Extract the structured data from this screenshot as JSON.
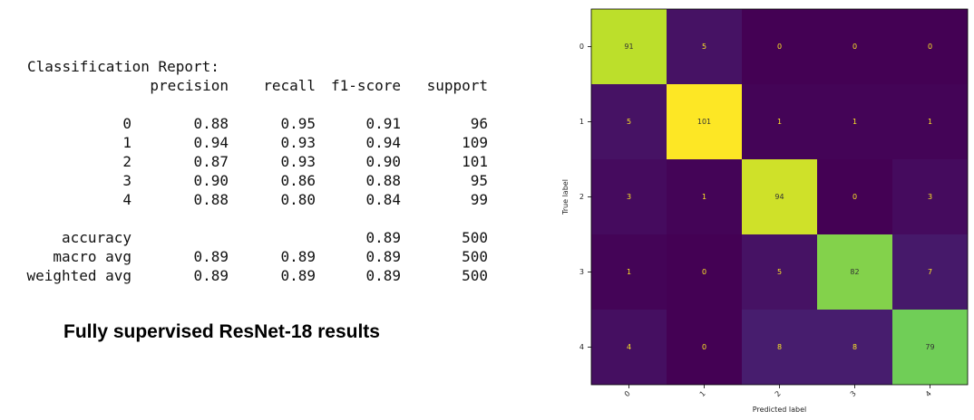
{
  "report": {
    "title": "Classification Report:",
    "headers": [
      "precision",
      "recall",
      "f1-score",
      "support"
    ],
    "rows": [
      {
        "label": "0",
        "values": [
          "0.88",
          "0.95",
          "0.91",
          "96"
        ]
      },
      {
        "label": "1",
        "values": [
          "0.94",
          "0.93",
          "0.94",
          "109"
        ]
      },
      {
        "label": "2",
        "values": [
          "0.87",
          "0.93",
          "0.90",
          "101"
        ]
      },
      {
        "label": "3",
        "values": [
          "0.90",
          "0.86",
          "0.88",
          "95"
        ]
      },
      {
        "label": "4",
        "values": [
          "0.88",
          "0.80",
          "0.84",
          "99"
        ]
      }
    ],
    "summary": [
      {
        "label": "accuracy",
        "values": [
          "",
          "",
          "0.89",
          "500"
        ]
      },
      {
        "label": "macro avg",
        "values": [
          "0.89",
          "0.89",
          "0.89",
          "500"
        ]
      },
      {
        "label": "weighted avg",
        "values": [
          "0.89",
          "0.89",
          "0.89",
          "500"
        ]
      }
    ]
  },
  "caption": "Fully supervised ResNet-18 results",
  "chart_data": {
    "type": "heatmap",
    "title": "",
    "xlabel": "Predicted label",
    "ylabel": "True label",
    "x_categories": [
      "0",
      "1",
      "2",
      "3",
      "4"
    ],
    "y_categories": [
      "0",
      "1",
      "2",
      "3",
      "4"
    ],
    "values": [
      [
        91,
        5,
        0,
        0,
        0
      ],
      [
        5,
        101,
        1,
        1,
        1
      ],
      [
        3,
        1,
        94,
        0,
        3
      ],
      [
        1,
        0,
        5,
        82,
        7
      ],
      [
        4,
        0,
        8,
        8,
        79
      ]
    ],
    "colormap": "viridis",
    "vmin": 0,
    "vmax": 101,
    "colors": {
      "low": "#440154",
      "high": "#fde725"
    }
  }
}
